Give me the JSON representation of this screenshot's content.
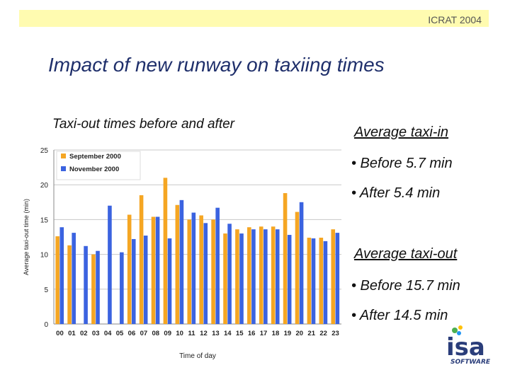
{
  "header": {
    "conference": "ICRAT 2004"
  },
  "slide": {
    "title": "Impact of new runway on taxiing times"
  },
  "chart_caption": "Taxi-out times before and after",
  "side": {
    "taxi_in_heading": "Average taxi-in",
    "taxi_in_before": "• Before 5.7 min",
    "taxi_in_after": "• After 5.4 min",
    "taxi_out_heading": "Average taxi-out",
    "taxi_out_before": "• Before 15.7 min",
    "taxi_out_after": "• After 14.5 min"
  },
  "logo": {
    "name": "isa",
    "subtitle": "SOFTWARE"
  },
  "colors": {
    "september": "#f5a623",
    "november": "#3b63e0",
    "accent": "#1f2f6b"
  },
  "chart_data": {
    "type": "bar",
    "title": "",
    "xlabel": "Time of day",
    "ylabel": "Average taxi-out time (min)",
    "ylim": [
      0,
      25
    ],
    "yticks": [
      0,
      5,
      10,
      15,
      20,
      25
    ],
    "legend_position": "top-left",
    "categories": [
      "00",
      "01",
      "02",
      "03",
      "04",
      "05",
      "06",
      "07",
      "08",
      "09",
      "10",
      "11",
      "12",
      "13",
      "14",
      "15",
      "16",
      "17",
      "18",
      "19",
      "20",
      "21",
      "22",
      "23"
    ],
    "series": [
      {
        "name": "September 2000",
        "color": "#f5a623",
        "values": [
          12.6,
          11.3,
          null,
          10.0,
          null,
          null,
          15.7,
          18.5,
          15.4,
          21.0,
          17.1,
          15.0,
          15.6,
          15.0,
          13.0,
          13.6,
          13.9,
          14.0,
          14.0,
          18.8,
          16.1,
          12.4,
          12.4,
          13.6
        ]
      },
      {
        "name": "November 2000",
        "color": "#3b63e0",
        "values": [
          13.9,
          13.1,
          11.2,
          10.5,
          17.0,
          10.3,
          12.2,
          12.7,
          15.4,
          12.3,
          17.8,
          16.0,
          14.5,
          16.7,
          14.4,
          13.0,
          13.6,
          13.6,
          13.6,
          12.8,
          17.5,
          12.3,
          11.9,
          13.1
        ]
      }
    ]
  }
}
